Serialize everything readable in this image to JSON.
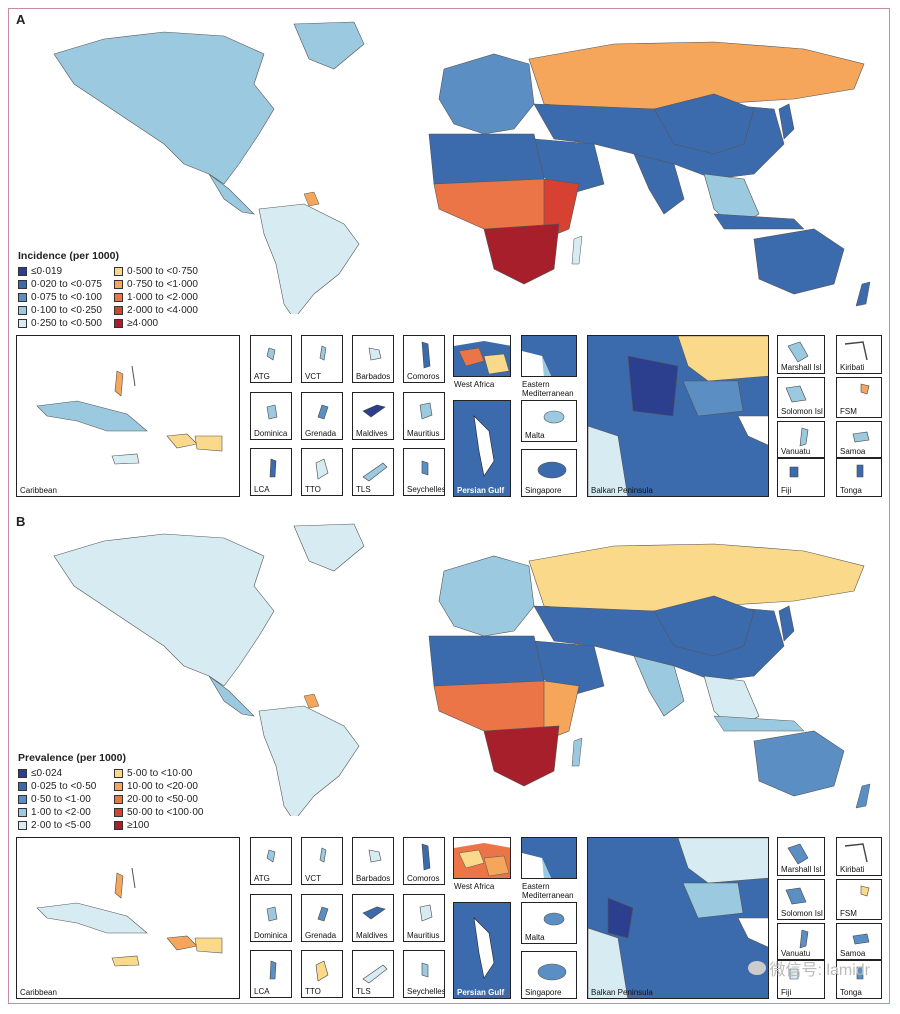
{
  "panels": [
    {
      "letter": "A",
      "legend_title": "Incidence (per 1000)",
      "legend": [
        {
          "label": "≤0·019",
          "color": "#2c3f8f"
        },
        {
          "label": "0·020 to <0·075",
          "color": "#3b6aad"
        },
        {
          "label": "0·075 to <0·100",
          "color": "#5b8fc4"
        },
        {
          "label": "0·100 to <0·250",
          "color": "#9bc9e0"
        },
        {
          "label": "0·250 to <0·500",
          "color": "#d7ecf2"
        },
        {
          "label": "0·500 to <0·750",
          "color": "#fbd98a"
        },
        {
          "label": "0·750 to <1·000",
          "color": "#f5a65b"
        },
        {
          "label": "1·000 to <2·000",
          "color": "#ec7548"
        },
        {
          "label": "2·000 to <4·000",
          "color": "#d64132"
        },
        {
          "label": "≥4·000",
          "color": "#a81f2c"
        }
      ],
      "insets": {
        "caribbean": "Caribbean",
        "small": [
          "ATG",
          "VCT",
          "Barbados",
          "Comoros",
          "Dominica",
          "Grenada",
          "Maldives",
          "Mauritius",
          "LCA",
          "TTO",
          "TLS",
          "Seychelles"
        ],
        "west_africa": "West Africa",
        "eastern_med": "Eastern Mediterranean",
        "persian_gulf": "Persian Gulf",
        "malta": "Malta",
        "singapore": "Singapore",
        "balkan": "Balkan Peninsula",
        "pacific": [
          "Marshall Isl",
          "Kiribati",
          "Solomon Isl",
          "FSM",
          "Vanuatu",
          "Samoa",
          "Fiji",
          "Tonga"
        ]
      }
    },
    {
      "letter": "B",
      "legend_title": "Prevalence (per 1000)",
      "legend": [
        {
          "label": "≤0·024",
          "color": "#2c3f8f"
        },
        {
          "label": "0·025 to <0·50",
          "color": "#3b6aad"
        },
        {
          "label": "0·50 to <1·00",
          "color": "#5b8fc4"
        },
        {
          "label": "1·00 to <2·00",
          "color": "#9bc9e0"
        },
        {
          "label": "2·00 to <5·00",
          "color": "#d7ecf2"
        },
        {
          "label": "5·00 to <10·00",
          "color": "#fbd98a"
        },
        {
          "label": "10·00 to <20·00",
          "color": "#f5a65b"
        },
        {
          "label": "20·00 to <50·00",
          "color": "#ec7548"
        },
        {
          "label": "50·00 to <100·00",
          "color": "#d64132"
        },
        {
          "label": "≥100",
          "color": "#a81f2c"
        }
      ],
      "insets": {
        "caribbean": "Caribbean",
        "small": [
          "ATG",
          "VCT",
          "Barbados",
          "Comoros",
          "Dominica",
          "Grenada",
          "Maldives",
          "Mauritius",
          "LCA",
          "TTO",
          "TLS",
          "Seychelles"
        ],
        "west_africa": "West Africa",
        "eastern_med": "Eastern Mediterranean",
        "persian_gulf": "Persian Gulf",
        "malta": "Malta",
        "singapore": "Singapore",
        "balkan": "Balkan Peninsula",
        "pacific": [
          "Marshall Isl",
          "Kiribati",
          "Solomon Isl",
          "FSM",
          "Vanuatu",
          "Samoa",
          "Fiji",
          "Tonga"
        ]
      }
    }
  ],
  "watermark": "微信号: lamidr"
}
